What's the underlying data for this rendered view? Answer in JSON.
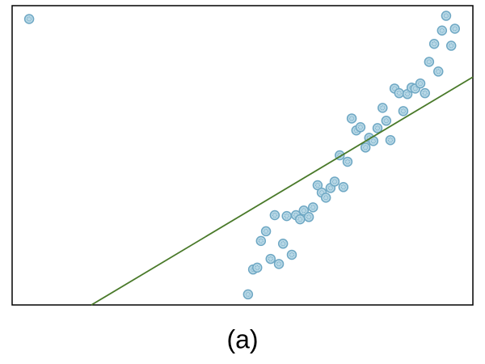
{
  "chart_data": {
    "type": "scatter",
    "caption": "(a)",
    "xlim": [
      0,
      100
    ],
    "ylim": [
      0,
      65
    ],
    "grid": false,
    "series": [
      {
        "color": "#6fa8c4",
        "x": [
          3.7,
          51.2,
          52.3,
          53.2,
          54.0,
          55.1,
          56.1,
          57.0,
          57.9,
          58.8,
          59.6,
          60.7,
          61.6,
          62.5,
          63.3,
          64.4,
          65.3,
          66.3,
          67.2,
          68.1,
          69.1,
          70.0,
          71.1,
          71.9,
          72.8,
          73.7,
          74.7,
          75.6,
          76.7,
          77.5,
          78.4,
          79.3,
          80.4,
          81.2,
          82.1,
          83.0,
          84.0,
          84.9,
          85.8,
          86.7,
          87.5,
          88.6,
          89.6,
          90.5,
          91.6,
          92.5,
          93.3,
          94.2,
          95.3,
          96.1
        ],
        "values": [
          62.1,
          2.3,
          7.7,
          8.1,
          13.9,
          16.0,
          10.0,
          19.5,
          8.9,
          13.3,
          19.3,
          10.9,
          19.5,
          18.6,
          20.5,
          19.1,
          21.2,
          26.0,
          24.4,
          23.3,
          25.4,
          26.8,
          32.5,
          25.6,
          31.1,
          40.5,
          37.9,
          38.6,
          34.2,
          36.3,
          35.6,
          38.4,
          42.8,
          40.0,
          35.8,
          47.0,
          46.0,
          42.1,
          45.8,
          47.2,
          47.0,
          48.1,
          46.0,
          52.8,
          56.7,
          50.7,
          59.6,
          62.8,
          56.3,
          60.0
        ]
      }
    ],
    "fit_line": {
      "color": "#4a7a2a",
      "x": [
        17.2,
        100
      ],
      "values": [
        0,
        49.5
      ]
    }
  }
}
